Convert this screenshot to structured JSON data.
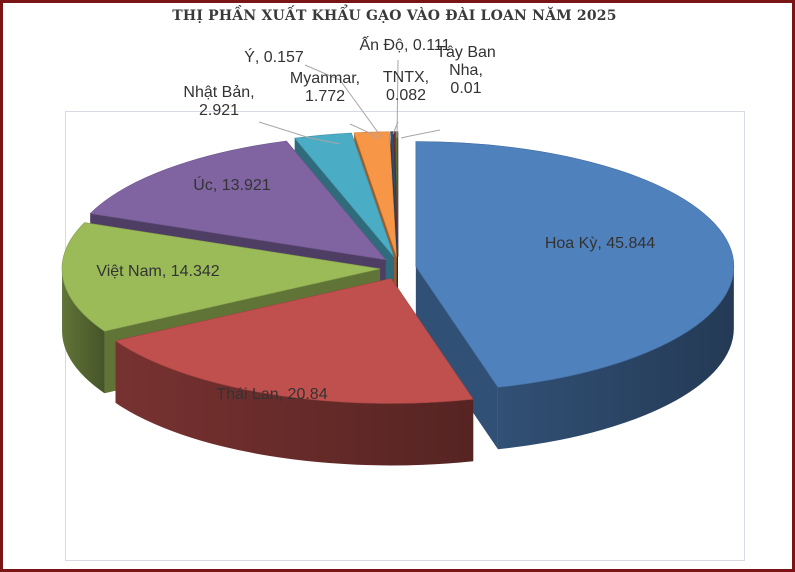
{
  "title": "THỊ PHẦN XUẤT KHẨU GẠO VÀO ĐÀI LOAN NĂM 2025",
  "chart_data": {
    "type": "pie",
    "title": "THỊ PHẦN XUẤT KHẨU GẠO VÀO ĐÀI LOAN NĂM 2025",
    "style": "3d-exploded",
    "legend": "none",
    "slices": [
      {
        "label": "Hoa Kỳ",
        "value": 45.844,
        "color": "#4f81bd"
      },
      {
        "label": "Thái Lan",
        "value": 20.84,
        "color": "#c0504d"
      },
      {
        "label": "Việt Nam",
        "value": 14.342,
        "color": "#9bbb59"
      },
      {
        "label": "Úc",
        "value": 13.921,
        "color": "#8064a2"
      },
      {
        "label": "Nhật Bản",
        "value": 2.921,
        "color": "#4bacc6"
      },
      {
        "label": "Myanmar",
        "value": 1.772,
        "color": "#f79646"
      },
      {
        "label": "Ý",
        "value": 0.157,
        "color": "#2c4d75"
      },
      {
        "label": "TNTX",
        "value": 0.082,
        "color": "#772c2a"
      },
      {
        "label": "Ấn Độ",
        "value": 0.111,
        "color": "#5f7530"
      },
      {
        "label": "Tây Ban Nha",
        "value": 0.01,
        "color": "#4d3b62"
      }
    ],
    "data_labels": [
      [
        "Hoa Kỳ, 45.844"
      ],
      [
        "Thái Lan, 20.84"
      ],
      [
        "Việt Nam, 14.342"
      ],
      [
        "Úc, 13.921"
      ],
      [
        "Nhật Bản,",
        "2.921"
      ],
      [
        "Myanmar,",
        "1.772"
      ],
      [
        "Ý, 0.157"
      ],
      [
        "TNTX,",
        "0.082"
      ],
      [
        "Ấn Độ, 0.111"
      ],
      [
        "Tây Ban",
        "Nha,",
        "0.01"
      ]
    ]
  }
}
